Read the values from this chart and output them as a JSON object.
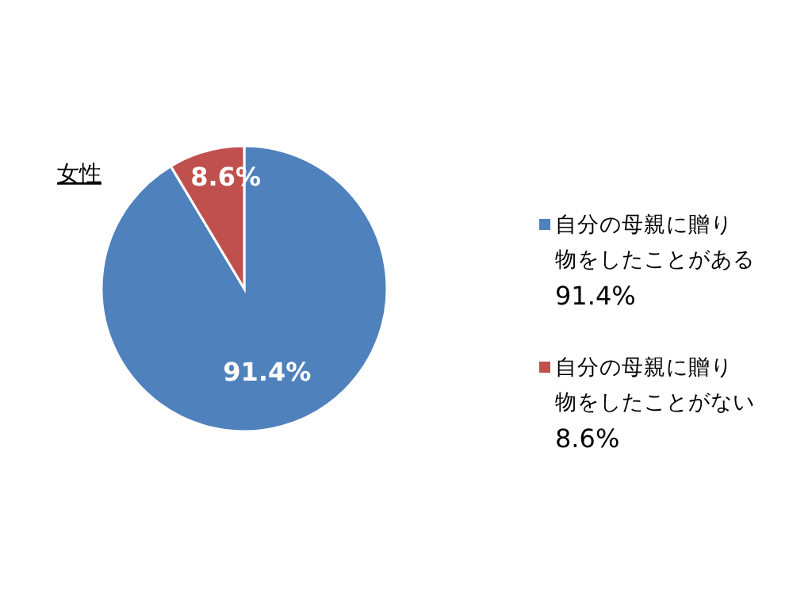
{
  "chart_data": {
    "type": "pie",
    "title": "女性",
    "categories": [
      "自分の母親に贈り物をしたことがある",
      "自分の母親に贈り物をしたことがない"
    ],
    "values": [
      91.4,
      8.6
    ],
    "colors": [
      "#4f81bd",
      "#c0504d"
    ],
    "value_labels": [
      "91.4%",
      "8.6%"
    ],
    "legend": "right"
  }
}
